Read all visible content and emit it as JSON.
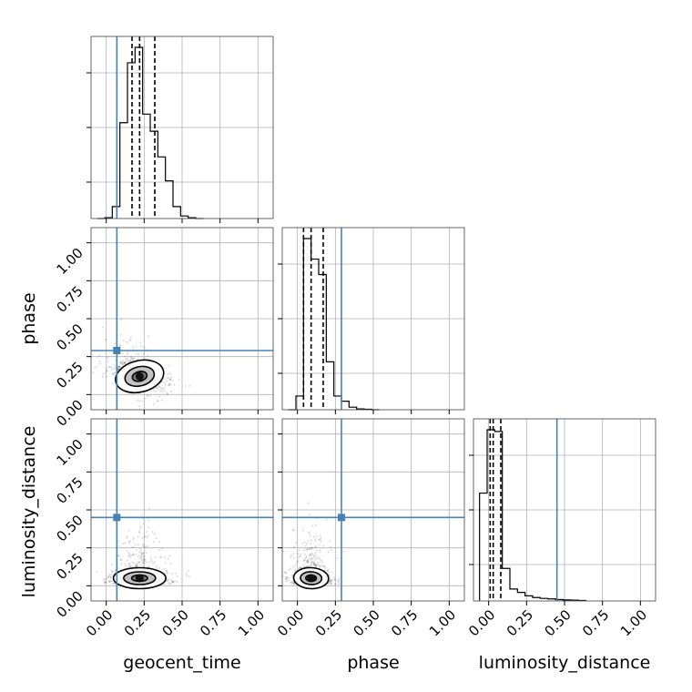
{
  "chart_data": {
    "type": "corner",
    "parameters": [
      "geocent_time",
      "phase",
      "luminosity_distance"
    ],
    "axis_labels": {
      "x": [
        "geocent_time",
        "phase",
        "luminosity_distance"
      ],
      "y": [
        "phase",
        "luminosity_distance"
      ]
    },
    "axis_range": [
      -0.1,
      1.1
    ],
    "tick_values": [
      0.0,
      0.25,
      0.5,
      0.75,
      1.0
    ],
    "tick_labels": [
      "0.00",
      "0.25",
      "0.50",
      "0.75",
      "1.00"
    ],
    "grid": true,
    "truth_color": "#4682b4",
    "truths": {
      "geocent_time": 0.07,
      "phase": 0.29,
      "luminosity_distance": 0.45
    },
    "quantiles": {
      "geocent_time": [
        0.17,
        0.22,
        0.32
      ],
      "phase": [
        0.04,
        0.09,
        0.17
      ],
      "luminosity_distance": [
        0.01,
        0.03,
        0.08
      ]
    },
    "histograms": {
      "geocent_time": {
        "bin_edges": [
          -0.06,
          -0.01,
          0.04,
          0.09,
          0.14,
          0.19,
          0.24,
          0.29,
          0.34,
          0.39,
          0.44,
          0.49,
          0.54,
          0.59,
          0.64
        ],
        "counts": [
          0.0,
          0.005,
          0.07,
          0.56,
          0.91,
          1.0,
          0.61,
          0.51,
          0.36,
          0.22,
          0.07,
          0.015,
          0.005,
          0.0
        ]
      },
      "phase": {
        "bin_edges": [
          -0.06,
          -0.01,
          0.04,
          0.09,
          0.14,
          0.19,
          0.24,
          0.29,
          0.34,
          0.39,
          0.44,
          0.49,
          0.54
        ],
        "counts": [
          0.0,
          0.08,
          1.0,
          0.88,
          0.79,
          0.28,
          0.08,
          0.05,
          0.015,
          0.005,
          0.003,
          0.0
        ]
      },
      "luminosity_distance": {
        "bin_edges": [
          -0.06,
          -0.01,
          0.04,
          0.09,
          0.14,
          0.19,
          0.24,
          0.29,
          0.34,
          0.39,
          0.44,
          0.49,
          0.54,
          0.59,
          0.64
        ],
        "counts": [
          0.63,
          1.0,
          0.99,
          0.19,
          0.07,
          0.05,
          0.03,
          0.02,
          0.015,
          0.012,
          0.008,
          0.006,
          0.005,
          0.003
        ]
      }
    },
    "posterior_peaks": {
      "phase_vs_geocent_time": [
        0.22,
        0.12
      ],
      "luminosity_distance_vs_geocent_time": [
        0.22,
        0.05
      ],
      "luminosity_distance_vs_phase": [
        0.09,
        0.05
      ]
    }
  }
}
